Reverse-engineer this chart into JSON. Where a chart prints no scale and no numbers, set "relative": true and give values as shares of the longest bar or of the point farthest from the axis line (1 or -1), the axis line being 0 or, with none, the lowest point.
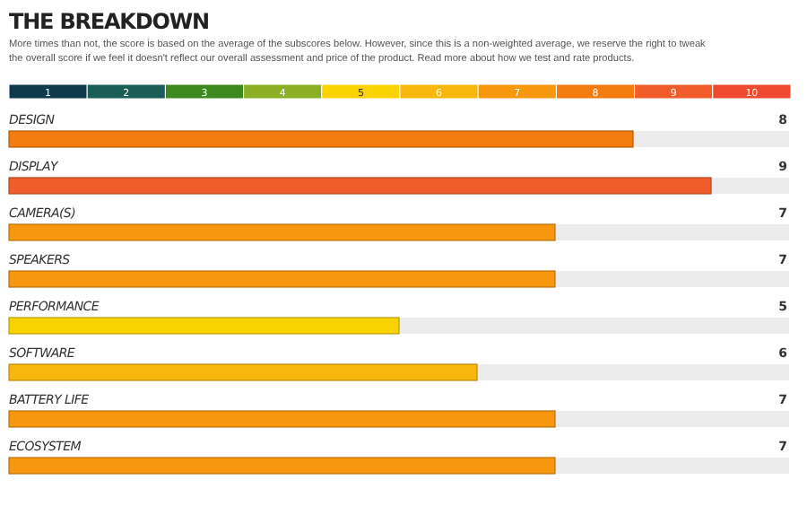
{
  "chart_data": [
    {
      "type": "bar",
      "orientation": "horizontal",
      "stacked": true,
      "relative": true,
      "title": "THE BREAKDOWN",
      "subtitle": "More times than not, the score is based on the average of the subscores below. However, since this is a non-weighted average, we reserve the right to tweak the overall score if we feel it doesn't reflect our overall assessment and price of the product. Read more about how we test and rate products.",
      "categories": [
        null
      ],
      "series": [
        {
          "name": "1",
          "color": "#0f3a4e",
          "values": [
            0.1
          ]
        },
        {
          "name": "2",
          "color": "#1a5e57",
          "values": [
            0.1
          ]
        },
        {
          "name": "3",
          "color": "#3c8a1f",
          "values": [
            0.1
          ]
        },
        {
          "name": "4",
          "color": "#8aaf25",
          "values": [
            0.1
          ]
        },
        {
          "name": "5",
          "color": "#f9d300",
          "values": [
            0.1
          ]
        },
        {
          "name": "6",
          "color": "#f8b70c",
          "values": [
            0.1
          ]
        },
        {
          "name": "7",
          "color": "#f7970e",
          "values": [
            0.1
          ]
        },
        {
          "name": "8",
          "color": "#f37b0f",
          "values": [
            0.1
          ]
        },
        {
          "name": "9",
          "color": "#f15d2a",
          "values": [
            0.1
          ]
        },
        {
          "name": "10",
          "color": "#ee4a32",
          "values": [
            0.1
          ]
        }
      ]
    },
    {
      "type": "bar",
      "orientation": "horizontal",
      "categories": [
        "DESIGN",
        "DISPLAY",
        "CAMERA(S)",
        "SPEAKERS",
        "PERFORMANCE",
        "SOFTWARE",
        "BATTERY LIFE",
        "ECOSYSTEM"
      ],
      "values": [
        8,
        9,
        7,
        7,
        5,
        6,
        7,
        7
      ],
      "colors": [
        "#f37b0f",
        "#f15d2a",
        "#f7970e",
        "#f7970e",
        "#f9d300",
        "#f8b70c",
        "#f7970e",
        "#f7970e"
      ],
      "xlim": [
        0,
        10
      ],
      "data_labels": true
    }
  ]
}
